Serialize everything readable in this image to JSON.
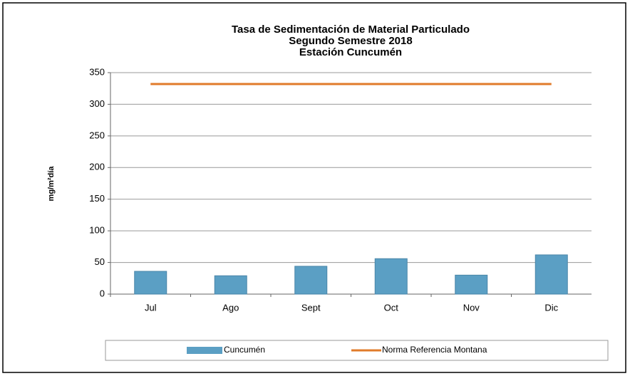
{
  "chart_data": {
    "type": "bar",
    "title": [
      "Tasa de Sedimentación de Material Particulado",
      "Segundo Semestre 2018",
      "Estación Cuncumén"
    ],
    "y_label": "mg/m²día",
    "categories": [
      "Jul",
      "Ago",
      "Sept",
      "Oct",
      "Nov",
      "Dic"
    ],
    "series": [
      {
        "name": "Cuncumén",
        "type": "bar",
        "color": "#5b9fc4",
        "values": [
          36,
          29,
          44,
          56,
          30,
          62
        ]
      },
      {
        "name": "Norma Referencia Montana",
        "type": "line",
        "color": "#e07b2a",
        "values": [
          332,
          332,
          332,
          332,
          332,
          332
        ]
      }
    ],
    "ylim": [
      0,
      350
    ],
    "yticks": [
      0,
      50,
      100,
      150,
      200,
      250,
      300,
      350
    ],
    "grid": true,
    "legend": "bottom"
  }
}
